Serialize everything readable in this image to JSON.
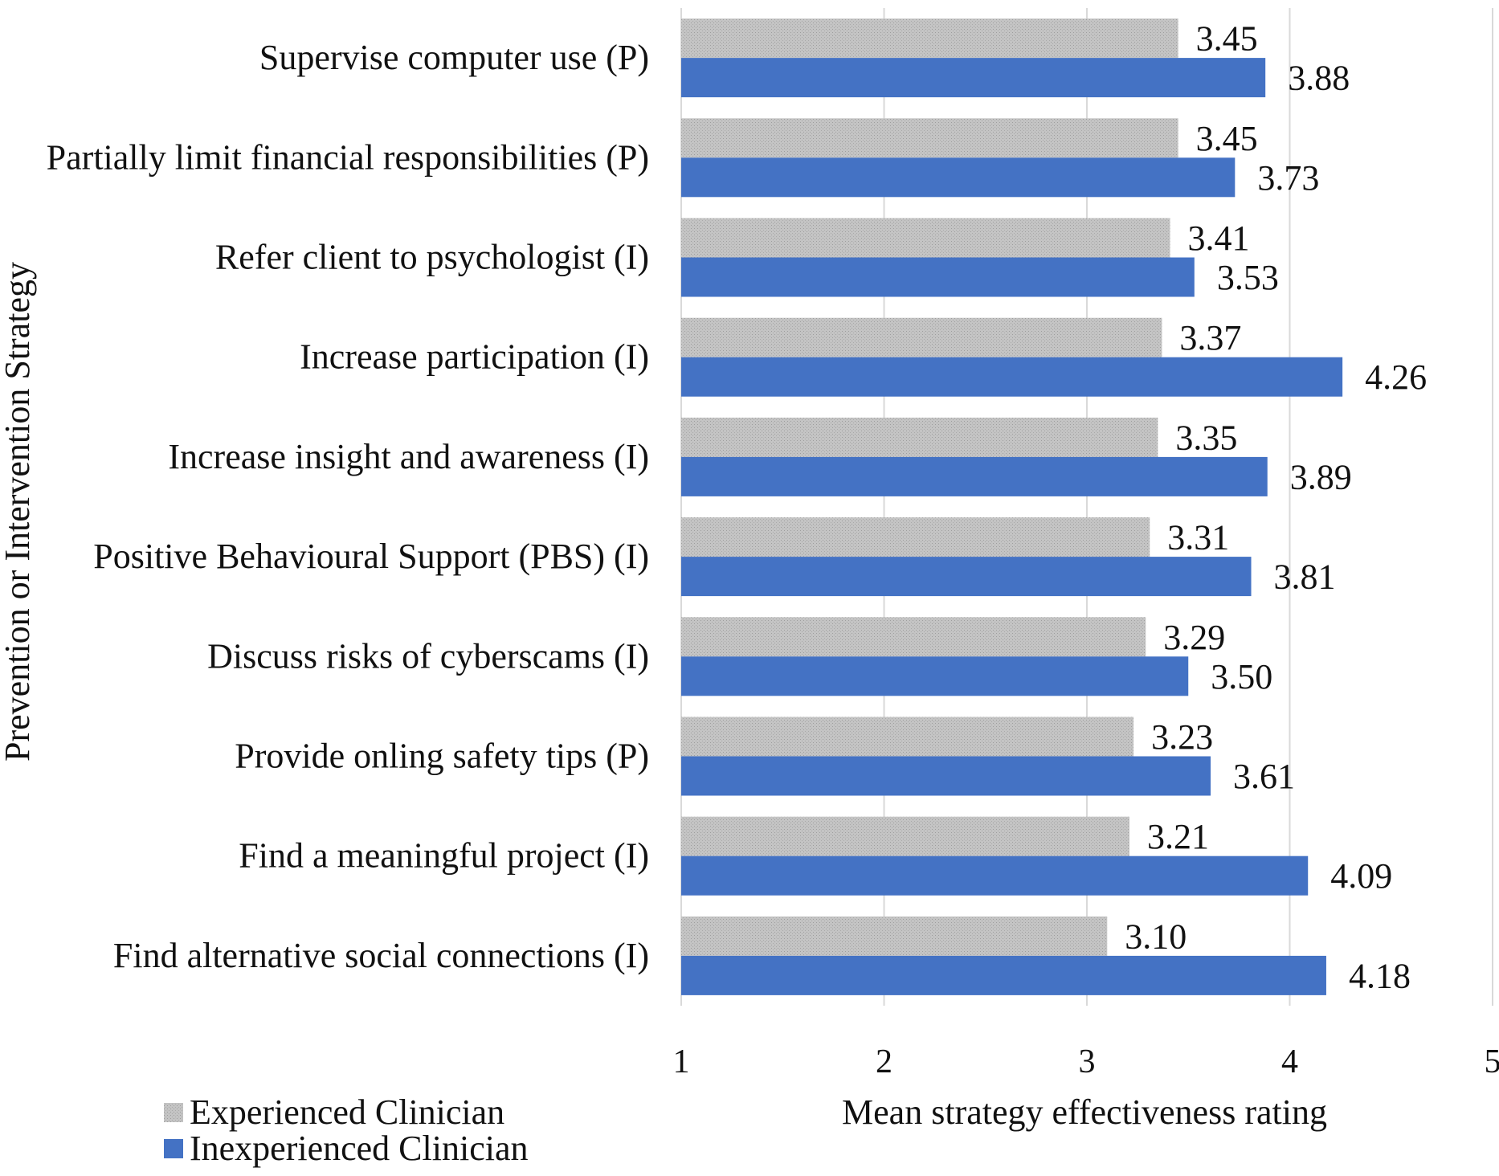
{
  "chart_data": {
    "type": "bar",
    "orientation": "horizontal",
    "title": "",
    "xlabel": "Mean strategy effectiveness rating",
    "ylabel": "Prevention or Intervention Strategy",
    "xlim": [
      1,
      5
    ],
    "xticks": [
      1,
      2,
      3,
      4,
      5
    ],
    "grid": true,
    "categories": [
      "Supervise computer use (P)",
      "Partially limit financial responsibilities (P)",
      "Refer client to psychologist (I)",
      "Increase participation (I)",
      "Increase insight and awareness (I)",
      "Positive Behavioural Support (PBS) (I)",
      "Discuss risks of cyberscams (I)",
      "Provide onling safety tips (P)",
      "Find a meaningful project (I)",
      "Find alternative social connections (I)"
    ],
    "series": [
      {
        "name": "Experienced Clinician",
        "color": "#c8c8c8",
        "values": [
          3.45,
          3.45,
          3.41,
          3.37,
          3.35,
          3.31,
          3.29,
          3.23,
          3.21,
          3.1
        ],
        "labels": [
          "3.45",
          "3.45",
          "3.41",
          "3.37",
          "3.35",
          "3.31",
          "3.29",
          "3.23",
          "3.21",
          "3.10"
        ]
      },
      {
        "name": "Inexperienced Clinician",
        "color": "#4472c4",
        "values": [
          3.88,
          3.73,
          3.53,
          4.26,
          3.89,
          3.81,
          3.5,
          3.61,
          4.09,
          4.18
        ],
        "labels": [
          "3.88",
          "3.73",
          "3.53",
          "4.26",
          "3.89",
          "3.81",
          "3.50",
          "3.61",
          "4.09",
          "4.18"
        ]
      }
    ],
    "legend": "bottom-left"
  }
}
